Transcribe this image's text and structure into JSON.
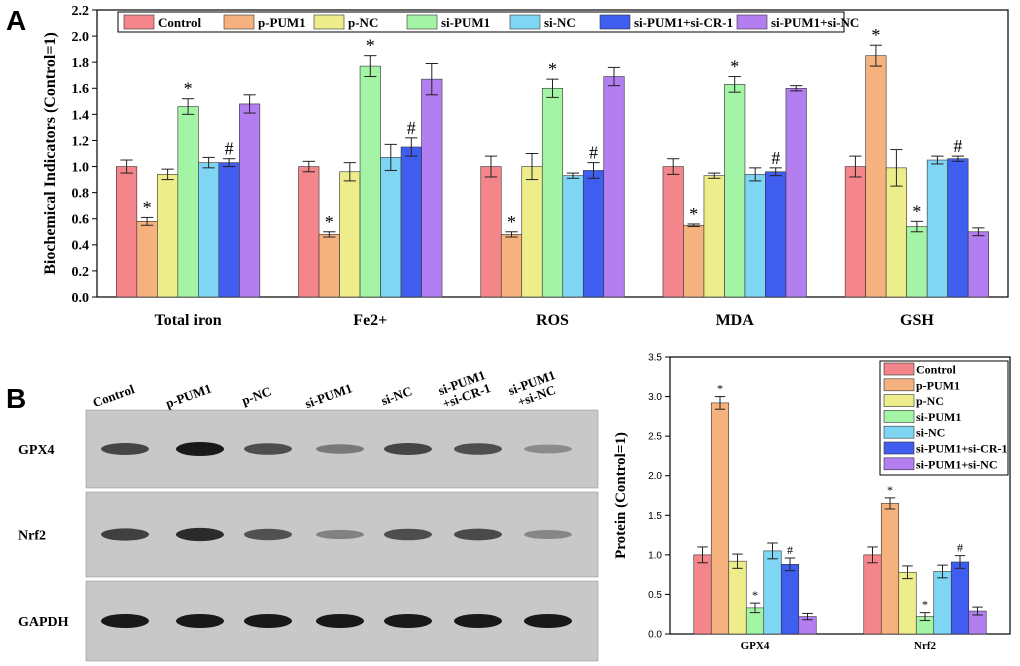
{
  "panel_labels": {
    "a": "A",
    "b": "B"
  },
  "colors": {
    "series": [
      "#f4858a",
      "#f5b27e",
      "#eeed8b",
      "#a3f5a5",
      "#7fd6f4",
      "#3f5ef0",
      "#b27ef0"
    ]
  },
  "blot": {
    "lanes": [
      "Control",
      "p-PUM1",
      "p-NC",
      "si-PUM1",
      "si-NC",
      "si-PUM1\n+si-CR-1",
      "si-PUM1\n+si-NC"
    ],
    "rows": [
      "GPX4",
      "Nrf2",
      "GAPDH"
    ],
    "intensities": {
      "GPX4": [
        0.75,
        1.0,
        0.7,
        0.45,
        0.75,
        0.7,
        0.35
      ],
      "Nrf2": [
        0.78,
        0.9,
        0.68,
        0.4,
        0.7,
        0.72,
        0.38
      ],
      "GAPDH": [
        1,
        1,
        1,
        1,
        1,
        1,
        1
      ]
    }
  },
  "chart_data": [
    {
      "type": "bar",
      "title": "",
      "ylabel": "Biochemical Indicators (Control=1)",
      "xlabel": "",
      "ylim": [
        0,
        2.2
      ],
      "yticks": [
        "0.0",
        "0.2",
        "0.4",
        "0.6",
        "0.8",
        "1.0",
        "1.2",
        "1.4",
        "1.6",
        "1.8",
        "2.0",
        "2.2"
      ],
      "categories": [
        "Total iron",
        "Fe2+",
        "ROS",
        "MDA",
        "GSH"
      ],
      "legend_placement": "top",
      "series": [
        {
          "name": "Control",
          "values": [
            1.0,
            1.0,
            1.0,
            1.0,
            1.0
          ],
          "errors": [
            0.05,
            0.04,
            0.08,
            0.06,
            0.08
          ],
          "marks": [
            "",
            "",
            "",
            "",
            ""
          ]
        },
        {
          "name": "p-PUM1",
          "values": [
            0.58,
            0.48,
            0.48,
            0.55,
            1.85
          ],
          "errors": [
            0.03,
            0.02,
            0.02,
            0.01,
            0.08
          ],
          "marks": [
            "*",
            "*",
            "*",
            "*",
            "*"
          ]
        },
        {
          "name": "p-NC",
          "values": [
            0.94,
            0.96,
            1.0,
            0.93,
            0.99
          ],
          "errors": [
            0.04,
            0.07,
            0.1,
            0.02,
            0.14
          ],
          "marks": [
            "",
            "",
            "",
            "",
            ""
          ]
        },
        {
          "name": "si-PUM1",
          "values": [
            1.46,
            1.77,
            1.6,
            1.63,
            0.54
          ],
          "errors": [
            0.06,
            0.08,
            0.07,
            0.06,
            0.04
          ],
          "marks": [
            "*",
            "*",
            "*",
            "*",
            "*"
          ]
        },
        {
          "name": "si-NC",
          "values": [
            1.03,
            1.07,
            0.93,
            0.94,
            1.05
          ],
          "errors": [
            0.04,
            0.1,
            0.02,
            0.05,
            0.03
          ],
          "marks": [
            "",
            "",
            "",
            "",
            ""
          ]
        },
        {
          "name": "si-PUM1+si-CR-1",
          "values": [
            1.03,
            1.15,
            0.97,
            0.96,
            1.06
          ],
          "errors": [
            0.03,
            0.07,
            0.06,
            0.03,
            0.02
          ],
          "marks": [
            "#",
            "#",
            "#",
            "#",
            "#"
          ]
        },
        {
          "name": "si-PUM1+si-NC",
          "values": [
            1.48,
            1.67,
            1.69,
            1.6,
            0.5
          ],
          "errors": [
            0.07,
            0.12,
            0.07,
            0.02,
            0.03
          ],
          "marks": [
            "",
            "",
            "",
            "",
            ""
          ]
        }
      ]
    },
    {
      "type": "bar",
      "title": "",
      "ylabel": "Protein (Control=1)",
      "xlabel": "",
      "ylim": [
        0,
        3.5
      ],
      "yticks": [
        "0.0",
        "0.5",
        "1.0",
        "1.5",
        "2.0",
        "2.5",
        "3.0",
        "3.5"
      ],
      "categories": [
        "GPX4",
        "Nrf2"
      ],
      "legend_placement": "top-right",
      "series": [
        {
          "name": "Control",
          "values": [
            1.0,
            1.0
          ],
          "errors": [
            0.1,
            0.1
          ],
          "marks": [
            "",
            ""
          ]
        },
        {
          "name": "p-PUM1",
          "values": [
            2.92,
            1.65
          ],
          "errors": [
            0.08,
            0.07
          ],
          "marks": [
            "*",
            "*"
          ]
        },
        {
          "name": "p-NC",
          "values": [
            0.92,
            0.78
          ],
          "errors": [
            0.09,
            0.08
          ],
          "marks": [
            "",
            ""
          ]
        },
        {
          "name": "si-PUM1",
          "values": [
            0.33,
            0.22
          ],
          "errors": [
            0.06,
            0.05
          ],
          "marks": [
            "*",
            "*"
          ]
        },
        {
          "name": "si-NC",
          "values": [
            1.05,
            0.79
          ],
          "errors": [
            0.1,
            0.08
          ],
          "marks": [
            "",
            ""
          ]
        },
        {
          "name": "si-PUM1+si-CR-1",
          "values": [
            0.88,
            0.91
          ],
          "errors": [
            0.08,
            0.08
          ],
          "marks": [
            "#",
            "#"
          ]
        },
        {
          "name": "si-PUM1+si-NC",
          "values": [
            0.22,
            0.29
          ],
          "errors": [
            0.04,
            0.05
          ],
          "marks": [
            "",
            ""
          ]
        }
      ]
    }
  ]
}
